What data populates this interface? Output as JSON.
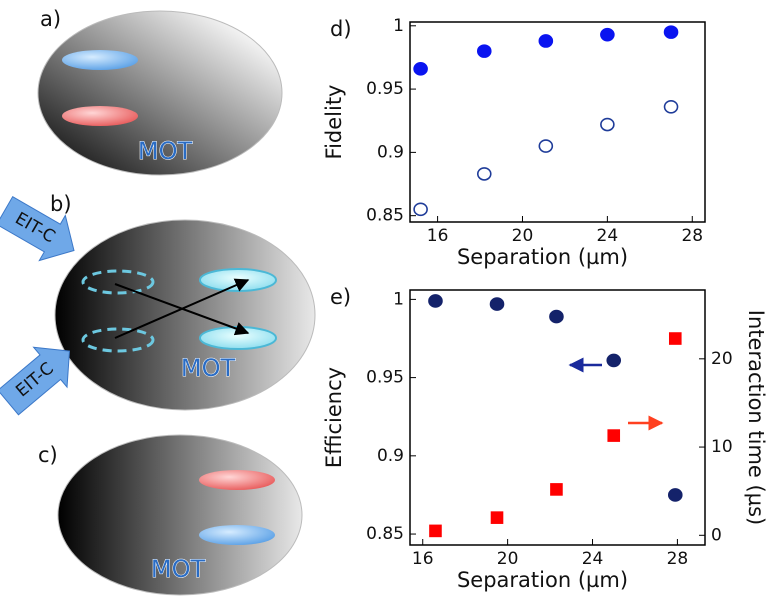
{
  "diagram": {
    "panels": [
      {
        "label": "a)",
        "text": "MOT"
      },
      {
        "label": "b)",
        "text": "MOT",
        "beams": [
          "EIT-C",
          "EIT-C"
        ]
      },
      {
        "label": "c)",
        "text": "MOT"
      }
    ]
  },
  "chart_data": [
    {
      "type": "scatter",
      "panel_label": "d)",
      "xlabel": "Separation (µm)",
      "ylabel": "Fidelity",
      "x": [
        15.2,
        18.2,
        21.1,
        24.0,
        27.0
      ],
      "xlim": [
        14.7,
        28.6
      ],
      "xticks": [
        16,
        20,
        24,
        28
      ],
      "ylim": [
        0.845,
        1.003
      ],
      "yticks": [
        0.85,
        0.9,
        0.95,
        1
      ],
      "series": [
        {
          "marker": "circle",
          "filled": true,
          "color": "#0a14f0",
          "values": [
            0.966,
            0.98,
            0.988,
            0.993,
            0.995
          ]
        },
        {
          "marker": "circle",
          "filled": false,
          "color": "#1f3c99",
          "values": [
            0.855,
            0.883,
            0.905,
            0.922,
            0.936
          ]
        }
      ]
    },
    {
      "type": "scatter",
      "panel_label": "e)",
      "xlabel": "Separation (µm)",
      "ylabel": "Efficiency",
      "y2label": "Interaction time (µs)",
      "x": [
        16.6,
        19.5,
        22.3,
        25.0,
        27.9
      ],
      "xlim": [
        15.4,
        29.3
      ],
      "xticks": [
        16,
        20,
        24,
        28
      ],
      "ylim": [
        0.843,
        1.006
      ],
      "yticks": [
        0.85,
        0.9,
        0.95,
        1
      ],
      "y2lim": [
        -1.1,
        27.8
      ],
      "y2ticks": [
        0,
        10,
        20
      ],
      "series": [
        {
          "marker": "circle",
          "filled": true,
          "color": "#14226a",
          "values": [
            0.999,
            0.997,
            0.989,
            0.961,
            0.875
          ]
        },
        {
          "marker": "square",
          "filled": true,
          "color": "#ff0000",
          "axis": "y2",
          "values": [
            0.5,
            2.0,
            5.2,
            11.3,
            22.3
          ]
        }
      ]
    }
  ]
}
